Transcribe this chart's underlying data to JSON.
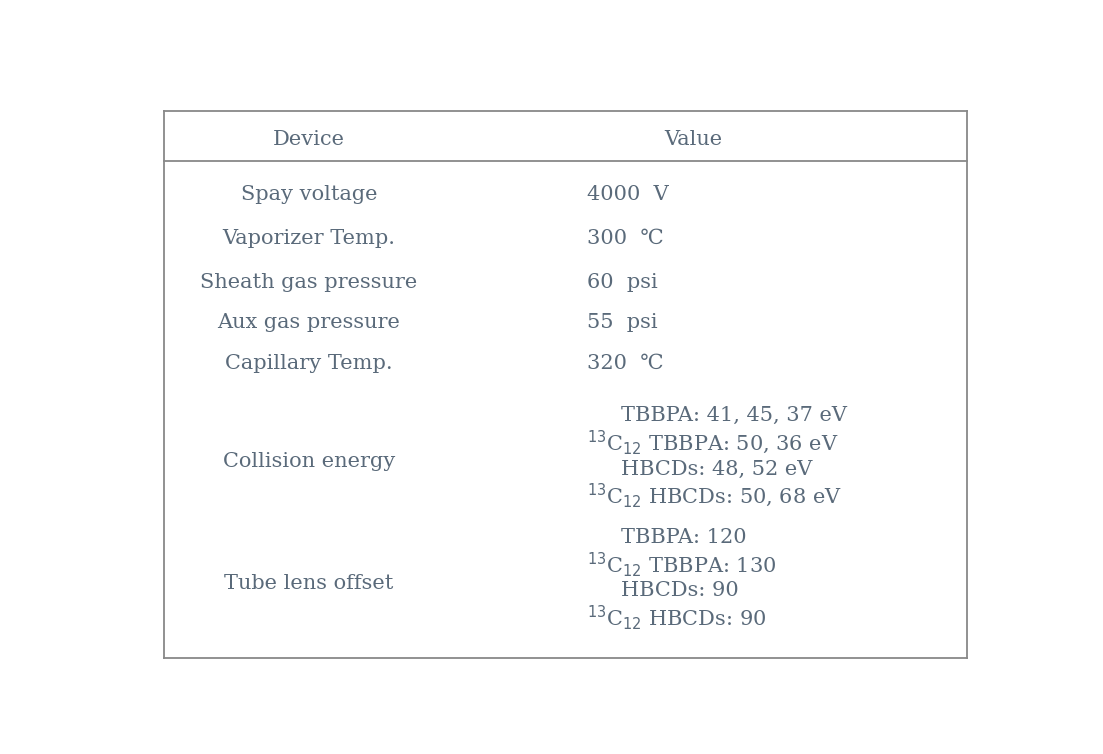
{
  "background_color": "#ffffff",
  "text_color": "#5a6a7a",
  "font_family": "DejaVu Serif",
  "header_row": [
    "Device",
    "Value"
  ],
  "simple_rows": [
    {
      "device": "Spay voltage",
      "value": "4000  V"
    },
    {
      "device": "Vaporizer Temp.",
      "value": "300  ℃"
    },
    {
      "device": "Sheath gas pressure",
      "value": "60  psi"
    },
    {
      "device": "Aux gas pressure",
      "value": "55  psi"
    },
    {
      "device": "Capillary Temp.",
      "value": "320  ℃"
    }
  ],
  "collision_energy_device": "Collision energy",
  "collision_energy_values": [
    {
      "has_isotope": false,
      "text": "TBBPA: 41, 45, 37 eV"
    },
    {
      "has_isotope": true,
      "text": " TBBPA: 50, 36 eV"
    },
    {
      "has_isotope": false,
      "text": "HBCDs: 48, 52 eV"
    },
    {
      "has_isotope": true,
      "text": " HBCDs: 50, 68 eV"
    }
  ],
  "tube_lens_device": "Tube lens offset",
  "tube_lens_values": [
    {
      "has_isotope": false,
      "text": "TBBPA: 120"
    },
    {
      "has_isotope": true,
      "text": " TBBPA: 130"
    },
    {
      "has_isotope": false,
      "text": "HBCDs: 90"
    },
    {
      "has_isotope": true,
      "text": " HBCDs: 90"
    }
  ],
  "fontsize": 15,
  "header_fontsize": 15,
  "isotope_prefix": "$^{13}$C$_{12}$",
  "border_color": "#888888",
  "line_color": "#888888"
}
